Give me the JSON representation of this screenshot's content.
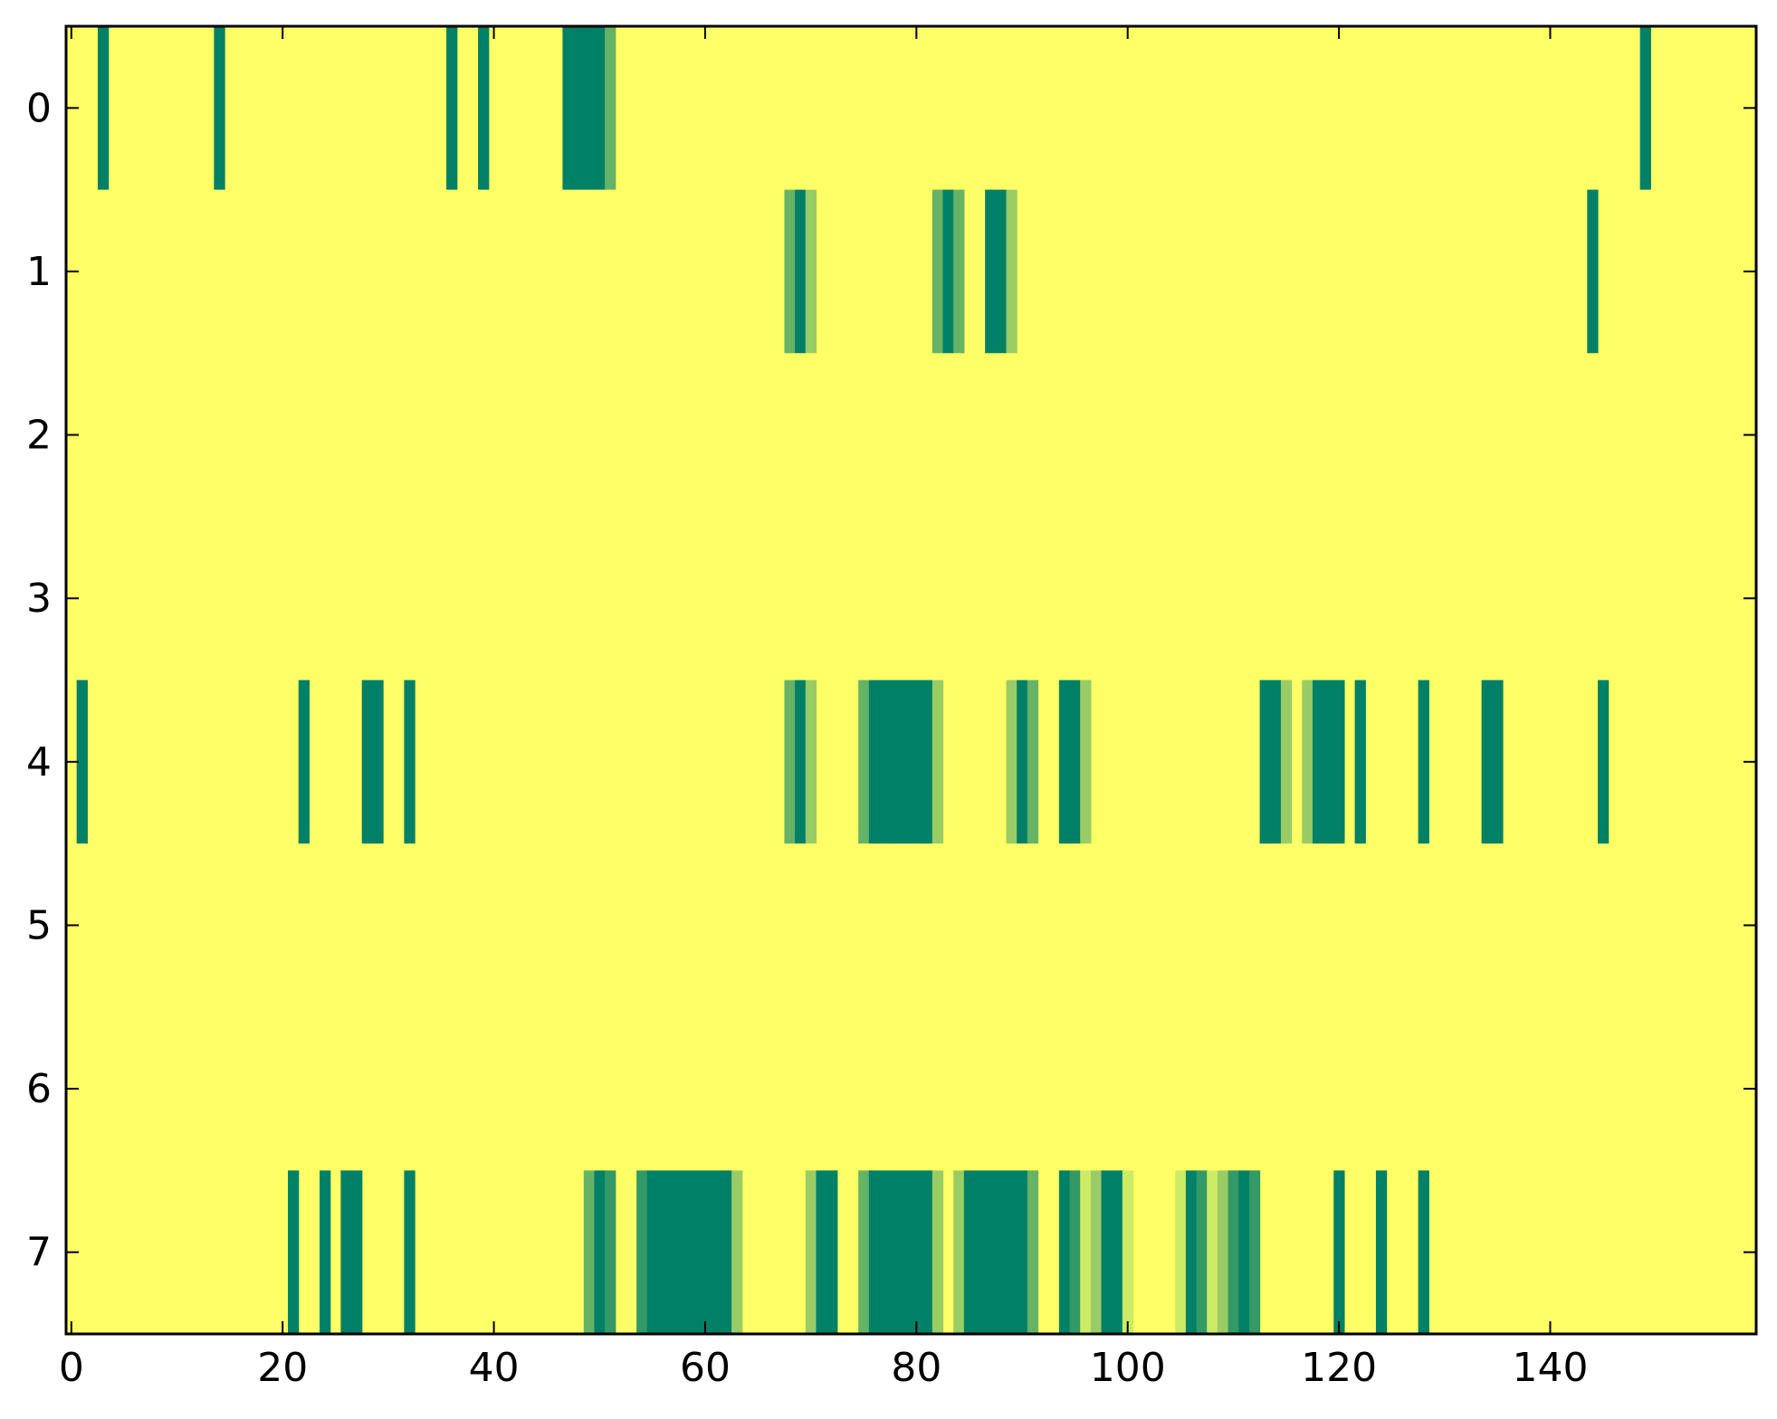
{
  "chart_data": {
    "type": "heatmap",
    "title": "",
    "xlabel": "",
    "ylabel": "",
    "xlim": [
      -0.5,
      159.5
    ],
    "ylim": [
      7.5,
      -0.5
    ],
    "grid": false,
    "legend": "none",
    "colormap": "summer_r",
    "background_value": 0,
    "x_ticks": [
      0,
      20,
      40,
      60,
      80,
      100,
      120,
      140
    ],
    "y_ticks": [
      0,
      1,
      2,
      3,
      4,
      5,
      6,
      7
    ],
    "x_tick_labels": [
      "0",
      "20",
      "40",
      "60",
      "80",
      "100",
      "120",
      "140"
    ],
    "y_tick_labels": [
      "0",
      "1",
      "2",
      "3",
      "4",
      "5",
      "6",
      "7"
    ],
    "color_scale": {
      "0": "#ffff66",
      "0.2": "#ccec66",
      "0.4": "#9acc66",
      "0.6": "#66b266",
      "0.8": "#339966",
      "1": "#008066"
    },
    "rows": [
      {
        "row": 0,
        "cells": [
          [
            3,
            1
          ],
          [
            14,
            1
          ],
          [
            36,
            1
          ],
          [
            39,
            1
          ],
          [
            47,
            1
          ],
          [
            48,
            1
          ],
          [
            49,
            1
          ],
          [
            50,
            1
          ],
          [
            51,
            0.6
          ],
          [
            149,
            1
          ]
        ]
      },
      {
        "row": 1,
        "cells": [
          [
            68,
            0.6
          ],
          [
            69,
            1
          ],
          [
            70,
            0.4
          ],
          [
            82,
            0.6
          ],
          [
            83,
            1
          ],
          [
            84,
            0.6
          ],
          [
            87,
            1
          ],
          [
            88,
            1
          ],
          [
            89,
            0.4
          ],
          [
            144,
            1
          ]
        ]
      },
      {
        "row": 2,
        "cells": []
      },
      {
        "row": 3,
        "cells": []
      },
      {
        "row": 4,
        "cells": [
          [
            1,
            1
          ],
          [
            22,
            1
          ],
          [
            28,
            1
          ],
          [
            29,
            1
          ],
          [
            32,
            1
          ],
          [
            68,
            0.6
          ],
          [
            69,
            1
          ],
          [
            70,
            0.4
          ],
          [
            75,
            0.6
          ],
          [
            76,
            1
          ],
          [
            77,
            1
          ],
          [
            78,
            1
          ],
          [
            79,
            1
          ],
          [
            80,
            1
          ],
          [
            81,
            1
          ],
          [
            82,
            0.4
          ],
          [
            89,
            0.4
          ],
          [
            90,
            1
          ],
          [
            91,
            0.6
          ],
          [
            94,
            1
          ],
          [
            95,
            1
          ],
          [
            96,
            0.4
          ],
          [
            112,
            0.1
          ],
          [
            113,
            1
          ],
          [
            114,
            1
          ],
          [
            115,
            0.4
          ],
          [
            117,
            0.4
          ],
          [
            118,
            1
          ],
          [
            119,
            1
          ],
          [
            120,
            1
          ],
          [
            122,
            1
          ],
          [
            128,
            1
          ],
          [
            134,
            1
          ],
          [
            135,
            1
          ],
          [
            145,
            1
          ]
        ]
      },
      {
        "row": 5,
        "cells": []
      },
      {
        "row": 6,
        "cells": []
      },
      {
        "row": 7,
        "cells": [
          [
            21,
            1
          ],
          [
            24,
            1
          ],
          [
            26,
            1
          ],
          [
            27,
            1
          ],
          [
            32,
            1
          ],
          [
            49,
            0.6
          ],
          [
            50,
            1
          ],
          [
            51,
            0.8
          ],
          [
            54,
            0.8
          ],
          [
            55,
            1
          ],
          [
            56,
            1
          ],
          [
            57,
            1
          ],
          [
            58,
            1
          ],
          [
            59,
            1
          ],
          [
            60,
            1
          ],
          [
            61,
            1
          ],
          [
            62,
            1
          ],
          [
            63,
            0.4
          ],
          [
            70,
            0.4
          ],
          [
            71,
            1
          ],
          [
            72,
            1
          ],
          [
            75,
            0.6
          ],
          [
            76,
            1
          ],
          [
            77,
            1
          ],
          [
            78,
            1
          ],
          [
            79,
            1
          ],
          [
            80,
            1
          ],
          [
            81,
            1
          ],
          [
            82,
            0.4
          ],
          [
            84,
            0.4
          ],
          [
            85,
            1
          ],
          [
            86,
            1
          ],
          [
            87,
            1
          ],
          [
            88,
            1
          ],
          [
            89,
            1
          ],
          [
            90,
            1
          ],
          [
            91,
            0.6
          ],
          [
            94,
            1
          ],
          [
            95,
            0.8
          ],
          [
            96,
            0.2
          ],
          [
            97,
            0.4
          ],
          [
            98,
            1
          ],
          [
            99,
            1
          ],
          [
            100,
            0.2
          ],
          [
            105,
            0.2
          ],
          [
            106,
            1
          ],
          [
            107,
            0.8
          ],
          [
            108,
            0.2
          ],
          [
            109,
            0.4
          ],
          [
            110,
            0.8
          ],
          [
            111,
            1
          ],
          [
            112,
            0.8
          ],
          [
            120,
            1
          ],
          [
            124,
            1
          ],
          [
            128,
            1
          ]
        ]
      }
    ]
  }
}
